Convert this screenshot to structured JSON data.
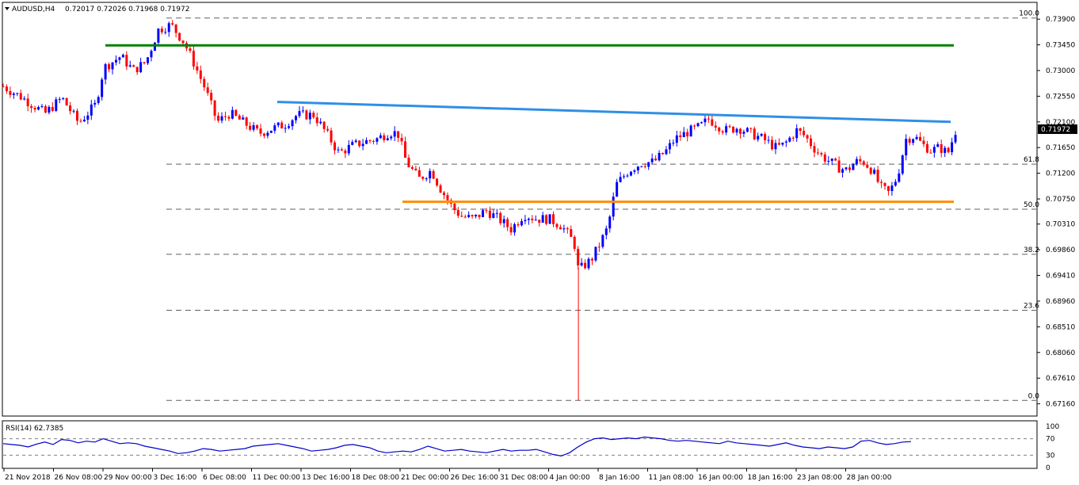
{
  "chart_data": {
    "type": "candlestick",
    "symbol_line": "AUDUSD,H4",
    "ohlc_line": "0.72017 0.72026 0.71968 0.71972",
    "colors": {
      "up": "#0000ff",
      "down": "#ff0000",
      "green_line": "#008000",
      "blue_line": "#2f8fe6",
      "orange_line": "#ff8c00",
      "rsi_line": "#0000cc",
      "price_tag_bg": "#000000"
    },
    "y_axis": {
      "ylim": [
        0.6696,
        0.7418
      ],
      "ticks": [
        "0.73900",
        "0.73450",
        "0.73000",
        "0.72550",
        "0.72100",
        "0.71650",
        "0.71200",
        "0.70750",
        "0.70310",
        "0.69860",
        "0.69410",
        "0.68960",
        "0.68510",
        "0.68060",
        "0.67610",
        "0.67160"
      ],
      "current_price": "0.71972",
      "current_value": 0.71972
    },
    "x_axis": {
      "labels": [
        "21 Nov 2018",
        "26 Nov 08:00",
        "29 Nov 00:00",
        "3 Dec 16:00",
        "6 Dec 08:00",
        "11 Dec 00:00",
        "13 Dec 16:00",
        "18 Dec 08:00",
        "21 Dec 00:00",
        "26 Dec 16:00",
        "31 Dec 08:00",
        "4 Jan 00:00",
        "8 Jan 16:00",
        "11 Jan 08:00",
        "16 Jan 00:00",
        "18 Jan 16:00",
        "23 Jan 08:00",
        "28 Jan 00:00"
      ]
    },
    "fibonacci": [
      {
        "label": "100.0",
        "value": 0.7392
      },
      {
        "label": "61.8",
        "value": 0.7136
      },
      {
        "label": "50.0",
        "value": 0.7057
      },
      {
        "label": "38.2",
        "value": 0.6978
      },
      {
        "label": "23.6",
        "value": 0.688
      },
      {
        "label": "0.0",
        "value": 0.6722
      }
    ],
    "trend_lines": [
      {
        "name": "green-resistance",
        "x": [
          0.0,
          0.74
        ],
        "y": [
          0.7344,
          0.7344
        ]
      },
      {
        "name": "blue-falling-resistance",
        "x": [
          0.17,
          0.74
        ],
        "y": [
          0.7245,
          0.721
        ]
      },
      {
        "name": "orange-support",
        "x": [
          0.235,
          0.74
        ],
        "y": [
          0.707,
          0.707
        ]
      }
    ],
    "price_path": [
      [
        0.0,
        0.7272
      ],
      [
        0.02,
        0.7255
      ],
      [
        0.05,
        0.7225
      ],
      [
        0.07,
        0.7252
      ],
      [
        0.09,
        0.7208
      ],
      [
        0.11,
        0.724
      ],
      [
        0.12,
        0.7305
      ],
      [
        0.14,
        0.7325
      ],
      [
        0.155,
        0.73
      ],
      [
        0.17,
        0.7315
      ],
      [
        0.185,
        0.7372
      ],
      [
        0.2,
        0.738
      ],
      [
        0.215,
        0.735
      ],
      [
        0.225,
        0.732
      ],
      [
        0.24,
        0.727
      ],
      [
        0.255,
        0.721
      ],
      [
        0.27,
        0.7225
      ],
      [
        0.29,
        0.7205
      ],
      [
        0.305,
        0.719
      ],
      [
        0.32,
        0.7198
      ],
      [
        0.335,
        0.7205
      ],
      [
        0.35,
        0.7222
      ],
      [
        0.37,
        0.7222
      ],
      [
        0.385,
        0.719
      ],
      [
        0.4,
        0.7155
      ],
      [
        0.415,
        0.7168
      ],
      [
        0.43,
        0.7175
      ],
      [
        0.445,
        0.718
      ],
      [
        0.46,
        0.7192
      ],
      [
        0.47,
        0.719
      ],
      [
        0.48,
        0.714
      ],
      [
        0.495,
        0.711
      ],
      [
        0.51,
        0.7125
      ],
      [
        0.52,
        0.7095
      ],
      [
        0.535,
        0.706
      ],
      [
        0.545,
        0.7045
      ],
      [
        0.56,
        0.704
      ],
      [
        0.575,
        0.7055
      ],
      [
        0.59,
        0.704
      ],
      [
        0.605,
        0.7022
      ],
      [
        0.62,
        0.7048
      ],
      [
        0.635,
        0.704
      ],
      [
        0.65,
        0.704
      ],
      [
        0.665,
        0.7028
      ],
      [
        0.68,
        0.6998
      ],
      [
        0.685,
        0.695
      ],
      [
        0.7,
        0.6968
      ],
      [
        0.71,
        0.6995
      ],
      [
        0.72,
        0.7025
      ],
      [
        0.73,
        0.71
      ],
      [
        0.745,
        0.7125
      ],
      [
        0.76,
        0.7138
      ],
      [
        0.775,
        0.714
      ],
      [
        0.79,
        0.716
      ],
      [
        0.8,
        0.718
      ],
      [
        0.815,
        0.7192
      ],
      [
        0.83,
        0.7202
      ],
      [
        0.84,
        0.7215
      ],
      [
        0.85,
        0.7205
      ],
      [
        0.86,
        0.7195
      ],
      [
        0.875,
        0.72
      ],
      [
        0.89,
        0.719
      ],
      [
        0.905,
        0.718
      ],
      [
        0.92,
        0.7165
      ],
      [
        0.93,
        0.717
      ],
      [
        0.945,
        0.7195
      ],
      [
        0.955,
        0.7185
      ],
      [
        0.965,
        0.7165
      ],
      [
        0.975,
        0.715
      ],
      [
        0.985,
        0.714
      ],
      [
        0.995,
        0.713
      ],
      [
        1.005,
        0.7125
      ],
      [
        1.015,
        0.714
      ],
      [
        1.025,
        0.714
      ],
      [
        1.035,
        0.7125
      ],
      [
        1.045,
        0.7095
      ],
      [
        1.055,
        0.7085
      ],
      [
        1.065,
        0.7115
      ],
      [
        1.075,
        0.718
      ],
      [
        1.085,
        0.7185
      ],
      [
        1.095,
        0.717
      ],
      [
        1.105,
        0.716
      ],
      [
        1.115,
        0.7165
      ],
      [
        1.125,
        0.7155
      ],
      [
        1.135,
        0.7198
      ]
    ],
    "price_spikes": [
      {
        "x": 0.685,
        "low": 0.6722,
        "high": 0.6955
      }
    ],
    "rsi": {
      "label": "RSI(14) 62.7385",
      "ticks": [
        "100",
        "70",
        "30",
        "0"
      ],
      "levels": [
        100,
        70,
        30,
        0
      ],
      "values": [
        58,
        56,
        54,
        50,
        57,
        62,
        56,
        68,
        66,
        60,
        64,
        62,
        70,
        64,
        58,
        60,
        58,
        52,
        48,
        44,
        40,
        34,
        36,
        40,
        46,
        44,
        40,
        42,
        44,
        46,
        52,
        54,
        56,
        58,
        54,
        50,
        46,
        40,
        42,
        44,
        48,
        54,
        56,
        52,
        48,
        40,
        36,
        38,
        40,
        38,
        44,
        52,
        46,
        40,
        42,
        44,
        40,
        38,
        36,
        40,
        44,
        40,
        42,
        42,
        44,
        38,
        32,
        28,
        36,
        50,
        62,
        70,
        72,
        68,
        70,
        72,
        70,
        74,
        72,
        70,
        66,
        64,
        66,
        64,
        62,
        60,
        58,
        64,
        60,
        58,
        56,
        54,
        52,
        56,
        60,
        54,
        50,
        48,
        46,
        50,
        48,
        46,
        50,
        64,
        66,
        60,
        56,
        58,
        62,
        63
      ]
    }
  }
}
